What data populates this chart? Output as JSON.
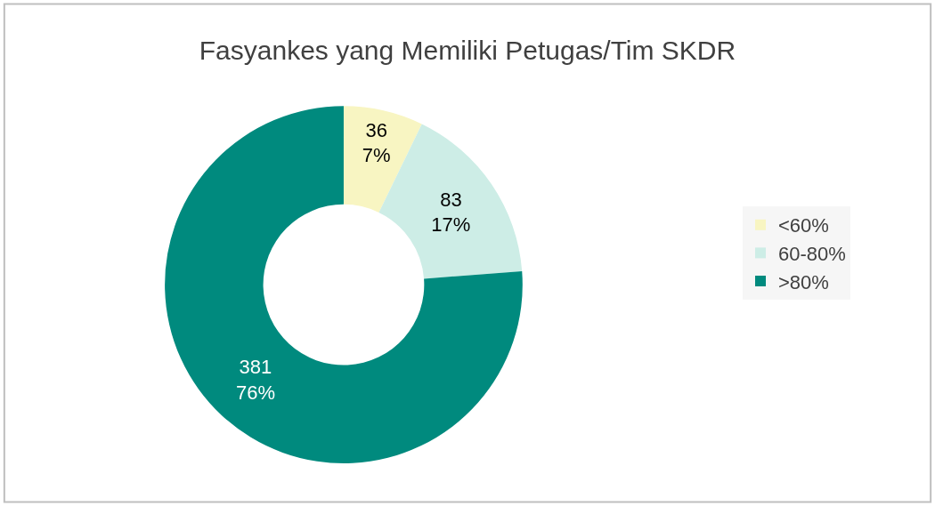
{
  "chart_data": {
    "type": "donut",
    "title": "Fasyankes yang Memiliki Petugas/Tim SKDR",
    "categories": [
      "<60%",
      "60-80%",
      ">80%"
    ],
    "values": [
      36,
      83,
      381
    ],
    "colors": [
      "#f8f5c2",
      "#cdede6",
      "#008a7e"
    ],
    "value_labels": [
      "36\n7%",
      "83\n17%",
      "381\n76%"
    ],
    "legend": "right"
  }
}
